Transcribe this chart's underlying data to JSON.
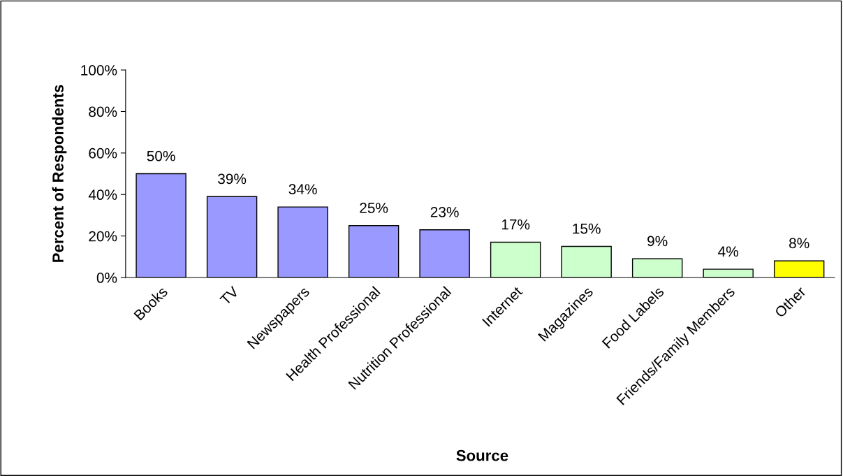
{
  "chart_data": {
    "type": "bar",
    "xlabel": "Source",
    "ylabel": "Percent of Respondents",
    "categories": [
      "Books",
      "TV",
      "Newspapers",
      "Health Professional",
      "Nutrition Professional",
      "Internet",
      "Magazines",
      "Food Labels",
      "Friends/Family Members",
      "Other"
    ],
    "values": [
      50,
      39,
      34,
      25,
      23,
      17,
      15,
      9,
      4,
      8
    ],
    "value_labels": [
      "50%",
      "39%",
      "34%",
      "25%",
      "23%",
      "17%",
      "15%",
      "9%",
      "4%",
      "8%"
    ],
    "colors": [
      "#9999ff",
      "#9999ff",
      "#9999ff",
      "#9999ff",
      "#9999ff",
      "#ccffcc",
      "#ccffcc",
      "#ccffcc",
      "#ccffcc",
      "#ffff00"
    ],
    "ylim": [
      0,
      100
    ],
    "yticks": [
      {
        "value": 0,
        "label": "0%"
      },
      {
        "value": 20,
        "label": "20%"
      },
      {
        "value": 40,
        "label": "40%"
      },
      {
        "value": 60,
        "label": "60%"
      },
      {
        "value": 80,
        "label": "80%"
      },
      {
        "value": 100,
        "label": "100%"
      }
    ],
    "grid": false,
    "legend": false
  }
}
